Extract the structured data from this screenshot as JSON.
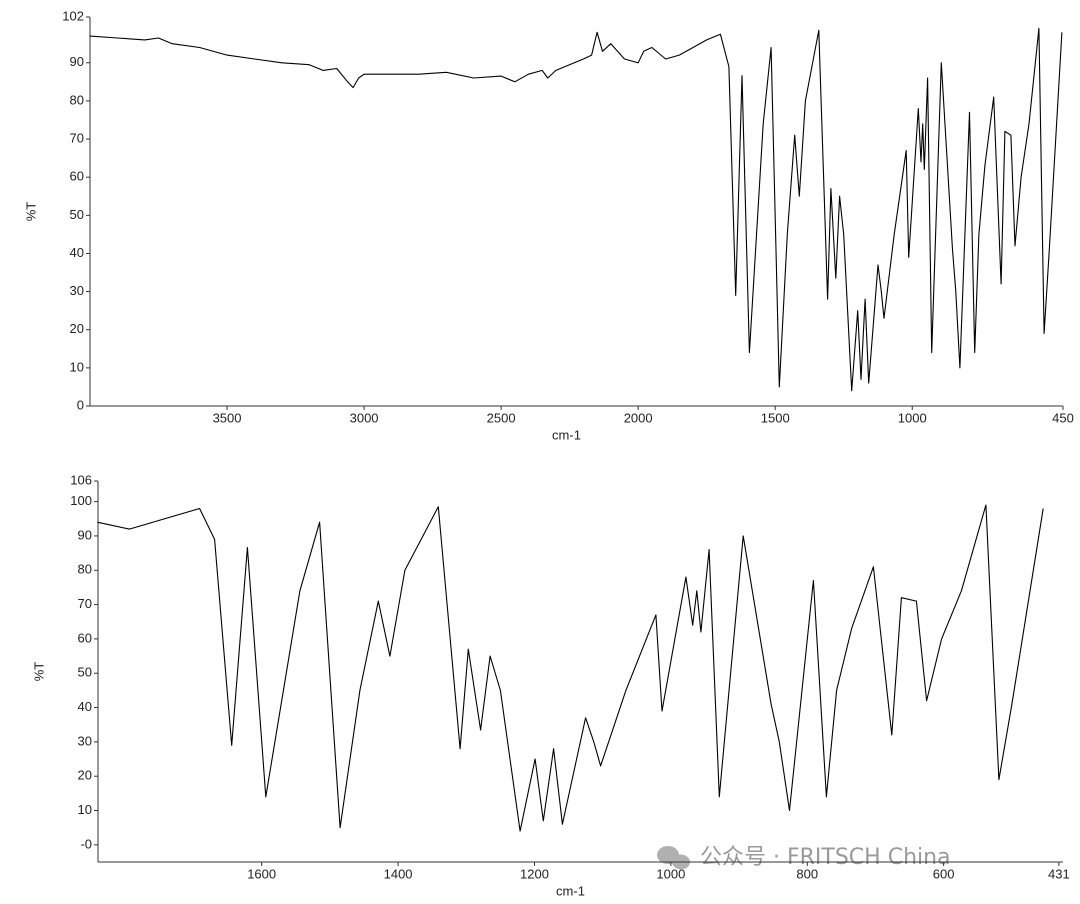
{
  "chart_data": [
    {
      "type": "line",
      "xlabel": "cm-1",
      "ylabel": "%T",
      "color": "#000000",
      "xlim": [
        4000,
        450
      ],
      "xticks": [
        3500,
        3000,
        2500,
        2000,
        1500,
        1000,
        450
      ],
      "ylim": [
        0,
        102
      ],
      "yticks": [
        0,
        10,
        20,
        30,
        40,
        50,
        60,
        70,
        80,
        90,
        102
      ],
      "x": [
        4000,
        3900,
        3800,
        3750,
        3700,
        3600,
        3500,
        3400,
        3300,
        3200,
        3150,
        3100,
        3060,
        3040,
        3020,
        3000,
        2900,
        2800,
        2700,
        2600,
        2500,
        2450,
        2400,
        2350,
        2330,
        2300,
        2200,
        2170,
        2150,
        2130,
        2100,
        2050,
        2000,
        1980,
        1950,
        1900,
        1850,
        1800,
        1750,
        1700,
        1669,
        1644,
        1621,
        1594,
        1544,
        1515,
        1485,
        1456,
        1429,
        1412,
        1390,
        1341,
        1309,
        1297,
        1279,
        1265,
        1250,
        1221,
        1199,
        1187,
        1172,
        1159,
        1125,
        1113,
        1103,
        1066,
        1022,
        1013,
        978,
        968,
        962,
        956,
        944,
        929,
        894,
        853,
        841,
        826,
        791,
        772,
        757,
        735,
        703,
        676,
        662,
        640,
        625,
        603,
        574,
        538,
        519,
        500,
        454
      ],
      "values": [
        97,
        96.5,
        96,
        96.5,
        95,
        94,
        92,
        91,
        90,
        89.5,
        88,
        88.5,
        85,
        83.5,
        86,
        87,
        87,
        87,
        87.5,
        86,
        86.5,
        85,
        87,
        88,
        86,
        88,
        91,
        92,
        98,
        93,
        95,
        91,
        90,
        93,
        94,
        91,
        92,
        94,
        96,
        97.5,
        89,
        29,
        86.6,
        14,
        74,
        94,
        5,
        45,
        71,
        55,
        80,
        98.5,
        28,
        57,
        33.5,
        55,
        45,
        4,
        25,
        7,
        28,
        6,
        37,
        30,
        23,
        45,
        67,
        39,
        78,
        64,
        74,
        62,
        86,
        14,
        90,
        41,
        30,
        10,
        77,
        14,
        45,
        63,
        81,
        32,
        72,
        71,
        42,
        60,
        74,
        99,
        19,
        41,
        98
      ]
    },
    {
      "type": "line",
      "xlabel": "cm-1",
      "ylabel": "%T",
      "color": "#000000",
      "xlim": [
        1840,
        425
      ],
      "xticks": [
        1600,
        1400,
        1200,
        1000,
        800,
        600,
        431
      ],
      "ylim": [
        -5,
        106
      ],
      "yticks": [
        {
          "value": 0,
          "label": "-0"
        },
        10,
        20,
        30,
        40,
        50,
        60,
        70,
        80,
        90,
        100,
        106
      ],
      "x": [
        1841,
        1794,
        1691,
        1669,
        1644,
        1621,
        1594,
        1544,
        1515,
        1485,
        1456,
        1429,
        1412,
        1390,
        1341,
        1309,
        1297,
        1279,
        1265,
        1250,
        1221,
        1199,
        1187,
        1172,
        1159,
        1125,
        1113,
        1103,
        1066,
        1022,
        1013,
        978,
        968,
        962,
        956,
        944,
        929,
        894,
        853,
        841,
        826,
        791,
        772,
        757,
        735,
        703,
        676,
        662,
        640,
        625,
        603,
        574,
        538,
        519,
        500,
        454
      ],
      "values": [
        94,
        92,
        98,
        89,
        29,
        86.6,
        14,
        74,
        94,
        5,
        45,
        71,
        55,
        80,
        98.5,
        28,
        57,
        33.5,
        55,
        45,
        4,
        25,
        7,
        28,
        6,
        37,
        30,
        23,
        45,
        67,
        39,
        78,
        64,
        74,
        62,
        86,
        14,
        90,
        41,
        30,
        10,
        77,
        14,
        45,
        63,
        81,
        32,
        72,
        71,
        42,
        60,
        74,
        99,
        19,
        41,
        98
      ]
    }
  ],
  "watermark": "公众号 · FRITSCH China"
}
